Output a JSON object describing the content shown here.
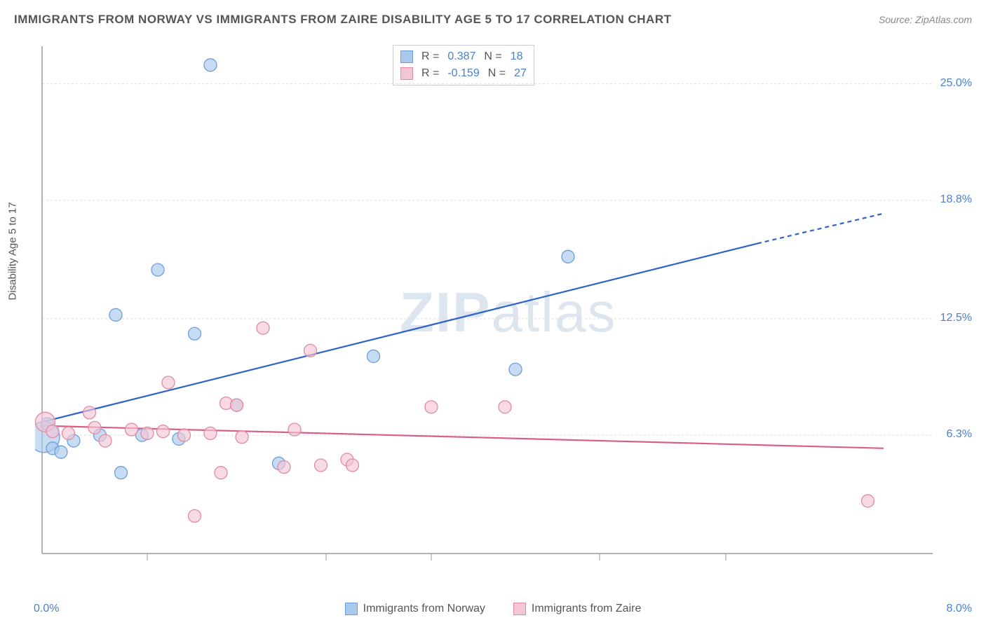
{
  "title": "IMMIGRANTS FROM NORWAY VS IMMIGRANTS FROM ZAIRE DISABILITY AGE 5 TO 17 CORRELATION CHART",
  "source": "Source: ZipAtlas.com",
  "y_axis_label": "Disability Age 5 to 17",
  "watermark": {
    "part1": "ZIP",
    "part2": "atlas"
  },
  "chart": {
    "type": "scatter",
    "background_color": "#ffffff",
    "grid_color": "#dddddd",
    "axis_color": "#999999",
    "xlim": [
      0.0,
      8.0
    ],
    "ylim": [
      0.0,
      27.0
    ],
    "y_ticks": [
      6.3,
      12.5,
      18.8,
      25.0
    ],
    "y_tick_labels": [
      "6.3%",
      "12.5%",
      "18.8%",
      "25.0%"
    ],
    "x_ticks": [
      1.0,
      2.7,
      3.7,
      5.3,
      6.5
    ],
    "x_corner_left": "0.0%",
    "x_corner_right": "8.0%",
    "marker_default_r": 9,
    "series": [
      {
        "key": "norway",
        "label": "Immigrants from Norway",
        "fill": "#a9c9ec",
        "stroke": "#6b9edb",
        "fill_opacity": 0.65,
        "line_color": "#2f63c9",
        "line_width": 2.2,
        "R": "0.387",
        "N": "18",
        "regression": {
          "x1": 0.0,
          "y1": 7.0,
          "x2": 6.8,
          "y2": 16.5,
          "dash_from_x": 6.8,
          "dash_to_x": 8.0,
          "dash_to_y": 18.1
        },
        "points": [
          {
            "x": 0.02,
            "y": 6.2,
            "r": 22
          },
          {
            "x": 0.05,
            "y": 6.9
          },
          {
            "x": 0.1,
            "y": 5.6
          },
          {
            "x": 0.18,
            "y": 5.4
          },
          {
            "x": 0.3,
            "y": 6.0
          },
          {
            "x": 0.55,
            "y": 6.3
          },
          {
            "x": 0.7,
            "y": 12.7
          },
          {
            "x": 0.75,
            "y": 4.3
          },
          {
            "x": 0.95,
            "y": 6.3
          },
          {
            "x": 1.1,
            "y": 15.1
          },
          {
            "x": 1.3,
            "y": 6.1
          },
          {
            "x": 1.45,
            "y": 11.7
          },
          {
            "x": 1.6,
            "y": 26.0
          },
          {
            "x": 1.85,
            "y": 7.9
          },
          {
            "x": 2.25,
            "y": 4.8
          },
          {
            "x": 3.15,
            "y": 10.5
          },
          {
            "x": 4.5,
            "y": 9.8
          },
          {
            "x": 5.0,
            "y": 15.8
          }
        ]
      },
      {
        "key": "zaire",
        "label": "Immigrants from Zaire",
        "fill": "#f3c6d4",
        "stroke": "#e08aa5",
        "fill_opacity": 0.65,
        "line_color": "#d95e86",
        "line_width": 2.2,
        "R": "-0.159",
        "N": "27",
        "regression": {
          "x1": 0.0,
          "y1": 6.8,
          "x2": 8.0,
          "y2": 5.6
        },
        "points": [
          {
            "x": 0.03,
            "y": 7.0,
            "r": 14
          },
          {
            "x": 0.1,
            "y": 6.5
          },
          {
            "x": 0.25,
            "y": 6.4
          },
          {
            "x": 0.45,
            "y": 7.5
          },
          {
            "x": 0.5,
            "y": 6.7
          },
          {
            "x": 0.6,
            "y": 6.0
          },
          {
            "x": 0.85,
            "y": 6.6
          },
          {
            "x": 1.0,
            "y": 6.4
          },
          {
            "x": 1.15,
            "y": 6.5
          },
          {
            "x": 1.2,
            "y": 9.1
          },
          {
            "x": 1.35,
            "y": 6.3
          },
          {
            "x": 1.45,
            "y": 2.0
          },
          {
            "x": 1.6,
            "y": 6.4
          },
          {
            "x": 1.7,
            "y": 4.3
          },
          {
            "x": 1.75,
            "y": 8.0
          },
          {
            "x": 1.85,
            "y": 7.9
          },
          {
            "x": 1.9,
            "y": 6.2
          },
          {
            "x": 2.1,
            "y": 12.0
          },
          {
            "x": 2.3,
            "y": 4.6
          },
          {
            "x": 2.4,
            "y": 6.6
          },
          {
            "x": 2.55,
            "y": 10.8
          },
          {
            "x": 2.65,
            "y": 4.7
          },
          {
            "x": 2.9,
            "y": 5.0
          },
          {
            "x": 2.95,
            "y": 4.7
          },
          {
            "x": 3.7,
            "y": 7.8
          },
          {
            "x": 4.4,
            "y": 7.8
          },
          {
            "x": 7.85,
            "y": 2.8
          }
        ]
      }
    ]
  },
  "legend_top": {
    "r_label": "R =",
    "n_label": "N ="
  }
}
